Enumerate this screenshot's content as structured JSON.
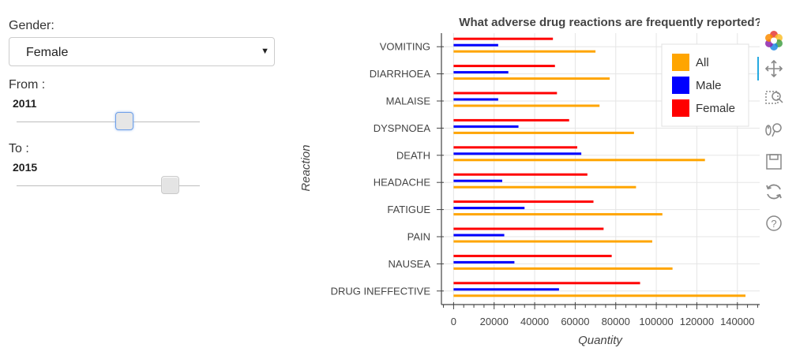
{
  "controls": {
    "gender_label": "Gender:",
    "gender_value": "Female",
    "from_label": "From :",
    "from_value": "2011",
    "from_slider_fraction": 0.59,
    "to_label": "To :",
    "to_value": "2015",
    "to_slider_fraction": 0.84
  },
  "toolbar": {
    "tools": [
      "bokeh-logo-icon",
      "pan-icon",
      "box-zoom-icon",
      "wheel-zoom-icon",
      "save-icon",
      "reset-icon",
      "help-icon"
    ],
    "active_tool": "pan-icon",
    "active_color": "#26aae1"
  },
  "chart_data": {
    "type": "bar",
    "orientation": "horizontal",
    "title": "What adverse drug reactions are frequently reported?",
    "xlabel": "Quantity",
    "ylabel": "Reaction",
    "categories": [
      "VOMITING",
      "DIARRHOEA",
      "MALAISE",
      "DYSPNOEA",
      "DEATH",
      "HEADACHE",
      "FATIGUE",
      "PAIN",
      "NAUSEA",
      "DRUG INEFFECTIVE"
    ],
    "series": [
      {
        "name": "All",
        "color": "#ffa500",
        "values": [
          70000,
          77000,
          72000,
          89000,
          124000,
          90000,
          103000,
          98000,
          108000,
          144000
        ]
      },
      {
        "name": "Male",
        "color": "#0000ff",
        "values": [
          22000,
          27000,
          22000,
          32000,
          63000,
          24000,
          35000,
          25000,
          30000,
          52000
        ]
      },
      {
        "name": "Female",
        "color": "#ff0000",
        "values": [
          49000,
          50000,
          51000,
          57000,
          61000,
          66000,
          69000,
          74000,
          78000,
          92000
        ]
      }
    ],
    "xlim": [
      -6000,
      151000
    ],
    "xticks": [
      0,
      20000,
      40000,
      60000,
      80000,
      100000,
      120000,
      140000
    ],
    "xtick_labels": [
      "0",
      "20000",
      "40000",
      "60000",
      "80000",
      "100000",
      "120000",
      "140000"
    ],
    "grid": true,
    "legend_position": "top-right"
  }
}
